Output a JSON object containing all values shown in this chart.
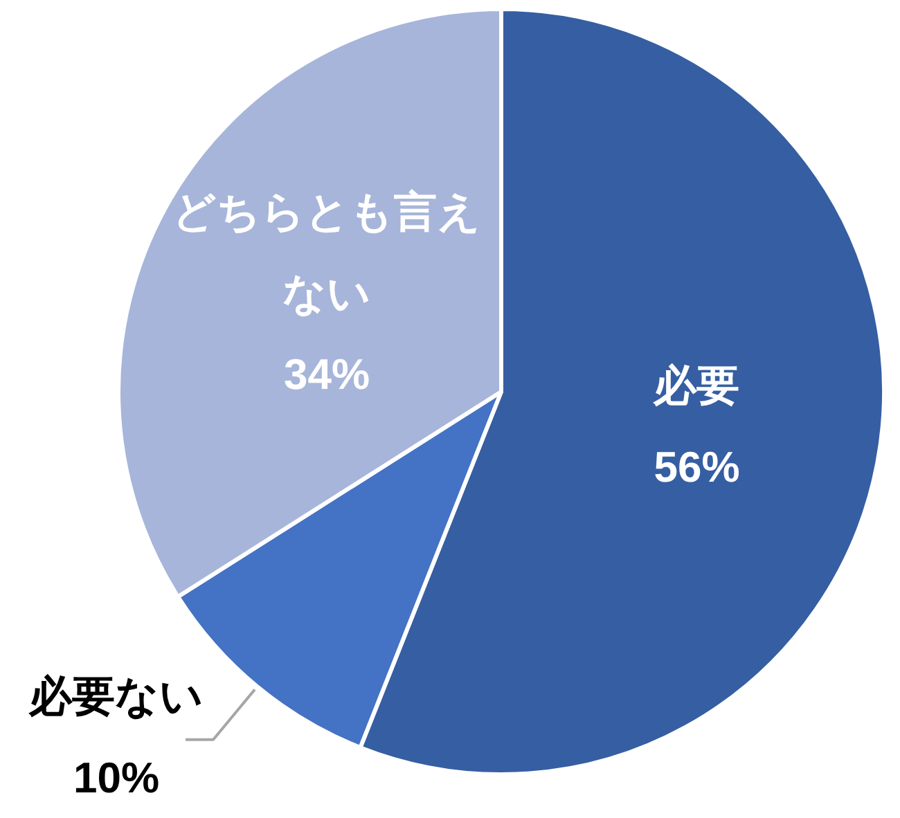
{
  "chart_data": {
    "type": "pie",
    "categories": [
      "必要",
      "必要ない",
      "どちらとも言えない"
    ],
    "values": [
      56,
      10,
      34
    ],
    "colors": [
      "#365ea2",
      "#4472c4",
      "#a7b5da"
    ],
    "value_labels": [
      "56%",
      "10%",
      "34%"
    ],
    "legend": false
  }
}
